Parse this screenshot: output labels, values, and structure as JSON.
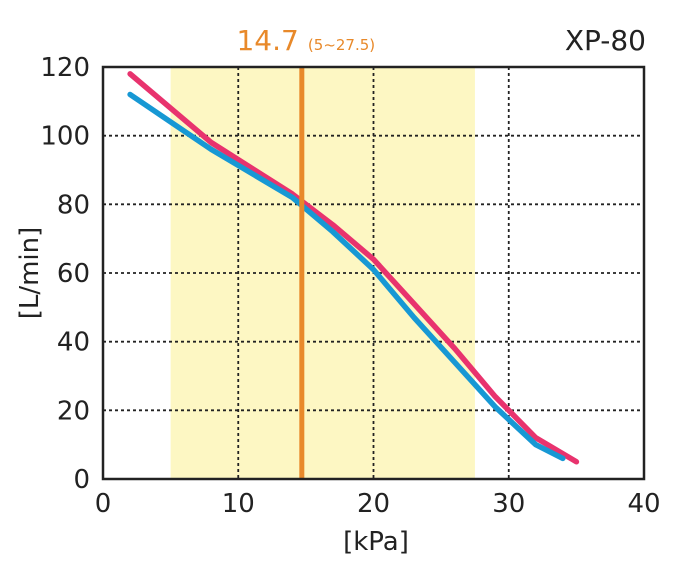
{
  "chart_data": {
    "type": "line",
    "title": "XP-80",
    "xlabel": "[kPa]",
    "ylabel": "[L/min]",
    "xlim": [
      0,
      40
    ],
    "ylim": [
      0,
      120
    ],
    "xticks": [
      0,
      10,
      20,
      30,
      40
    ],
    "yticks": [
      0,
      20,
      40,
      60,
      80,
      100,
      120
    ],
    "grid": true,
    "operating_point": {
      "value": 14.7,
      "label": "14.7",
      "range_label": "(5~27.5)",
      "range": [
        5,
        27.5
      ],
      "line_color": "#e8892a",
      "band_color": "#fdf7c3"
    },
    "series": [
      {
        "color": "#e8336e",
        "x": [
          2,
          8,
          14,
          17,
          20,
          23,
          26,
          29,
          32,
          35
        ],
        "y": [
          118,
          98,
          83,
          74,
          64,
          51,
          38,
          24,
          12,
          5
        ]
      },
      {
        "color": "#1798d4",
        "x": [
          2,
          8,
          14,
          17,
          20,
          23,
          26,
          29,
          32,
          34
        ],
        "y": [
          112,
          96,
          82,
          72,
          61,
          47,
          34,
          21,
          10,
          6
        ]
      }
    ]
  }
}
